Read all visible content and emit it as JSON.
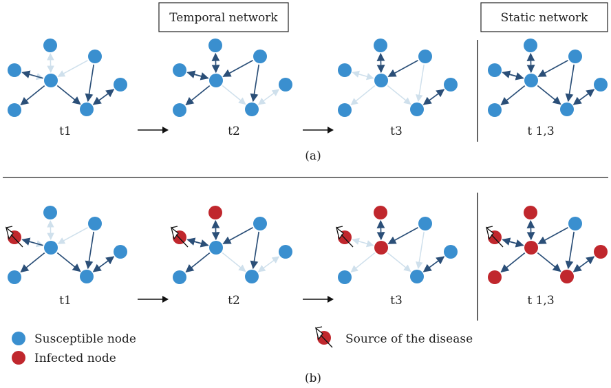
{
  "header": {
    "temporal_title": "Temporal network",
    "static_title": "Static network"
  },
  "panel_a": {
    "caption": "(a)",
    "time_labels": [
      "t1",
      "t2",
      "t3",
      "t 1,3"
    ]
  },
  "panel_b": {
    "caption": "(b)",
    "time_labels": [
      "t1",
      "t2",
      "t3",
      "t 1,3"
    ]
  },
  "legend": {
    "susceptible": "Susceptible node",
    "infected": "Infected node",
    "source": "Source of the disease"
  },
  "colors": {
    "susceptible": "#3a8fcf",
    "infected": "#c0272d",
    "active_edge": "#2b4f78",
    "inactive_edge": "#cfe0ec"
  },
  "network": {
    "nodes": [
      "A",
      "B",
      "C",
      "D",
      "E",
      "F",
      "G"
    ],
    "edges": [
      {
        "from": "C",
        "to": "B",
        "dir": "forward"
      },
      {
        "from": "C",
        "to": "A",
        "dir": "both"
      },
      {
        "from": "B",
        "to": "C",
        "dir": "forward"
      },
      {
        "from": "D",
        "to": "C",
        "dir": "forward"
      },
      {
        "from": "C",
        "to": "E",
        "dir": "forward"
      },
      {
        "from": "C",
        "to": "F",
        "dir": "forward"
      },
      {
        "from": "D",
        "to": "F",
        "dir": "forward"
      },
      {
        "from": "F",
        "to": "G",
        "dir": "both"
      }
    ],
    "active_edges": {
      "t1": [
        0,
        4,
        5,
        6,
        7
      ],
      "t2": [
        0,
        1,
        2,
        3,
        4,
        6
      ],
      "t3": [
        1,
        3,
        7
      ],
      "t13": [
        0,
        1,
        2,
        3,
        4,
        5,
        6,
        7
      ]
    },
    "infected_nodes": {
      "t1": [
        "B"
      ],
      "t2": [
        "A",
        "B"
      ],
      "t3": [
        "A",
        "B",
        "C"
      ],
      "t13": [
        "A",
        "B",
        "C",
        "E",
        "F",
        "G"
      ]
    },
    "source_node": "B"
  }
}
